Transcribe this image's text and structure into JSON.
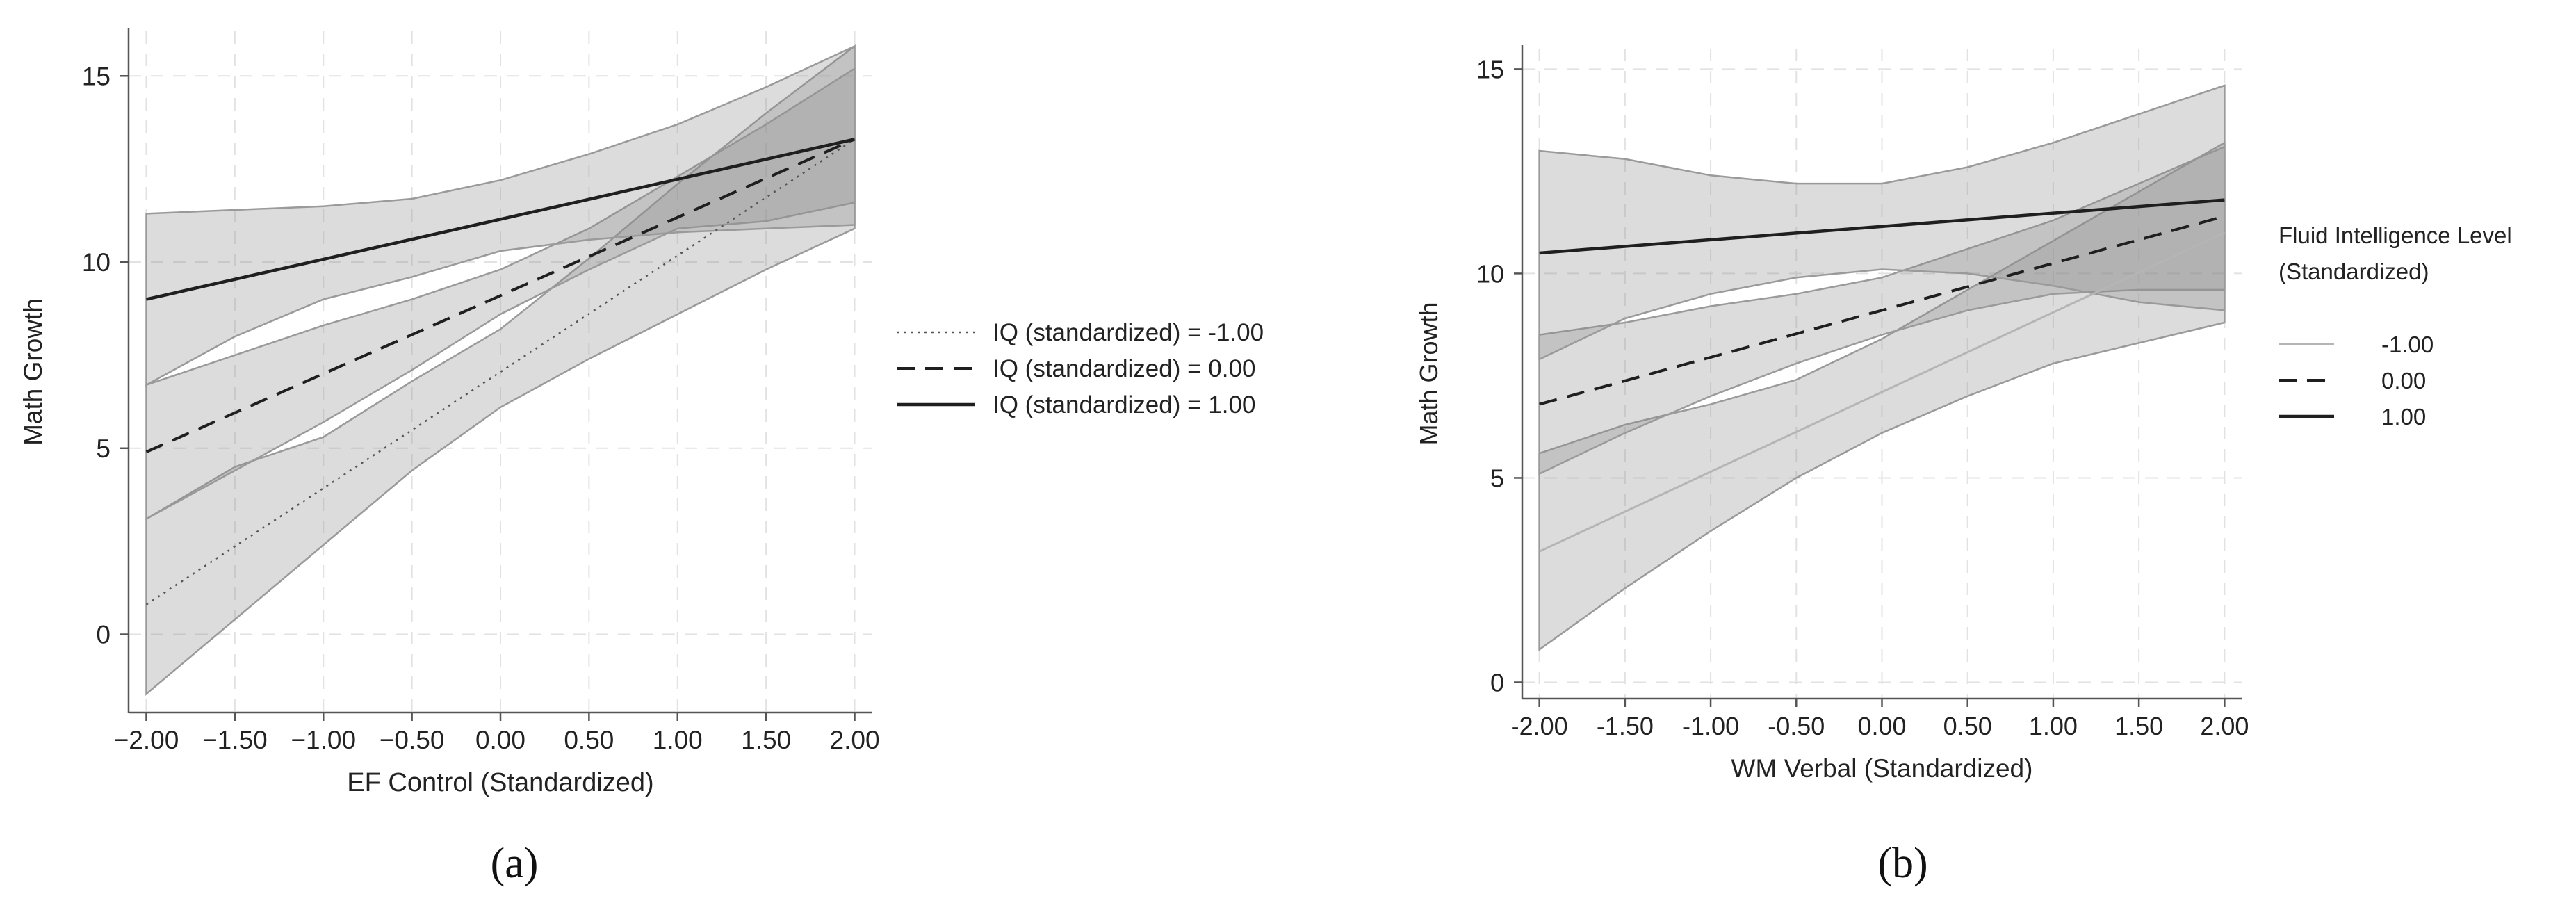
{
  "colors": {
    "band_fill": "#8c8c8c",
    "band_edge": "#9a9a9a",
    "line": "#1f1f1f",
    "grid": "#e2e2e2",
    "axis": "#555555",
    "text": "#222222"
  },
  "chart_data": [
    {
      "type": "line",
      "panel_label": "(a)",
      "xlabel": "EF Control (Standardized)",
      "ylabel": "Math Growth",
      "xlim": [
        -2.1,
        2.1
      ],
      "ylim": [
        -2.1,
        16.2
      ],
      "xticks": [
        -2,
        -1.5,
        -1,
        -0.5,
        0,
        0.5,
        1,
        1.5,
        2
      ],
      "xtick_labels": [
        "−2.00",
        "−1.50",
        "−1.00",
        "−0.50",
        "0.00",
        "0.50",
        "1.00",
        "1.50",
        "2.00"
      ],
      "yticks": [
        0,
        5,
        10,
        15
      ],
      "ytick_labels": [
        "0",
        "5",
        "10",
        "15"
      ],
      "grid": true,
      "legend_title": "",
      "legend_position": "right",
      "series": [
        {
          "name": "IQ (standardized) = -1.00",
          "style": "dotted",
          "x": [
            -2,
            2
          ],
          "y": [
            0.8,
            13.3
          ],
          "ci_x": [
            -2,
            -1.5,
            -1,
            -0.5,
            0,
            0.5,
            1,
            1.5,
            2
          ],
          "ci_lower": [
            -1.6,
            0.4,
            2.4,
            4.4,
            6.1,
            7.4,
            8.6,
            9.8,
            10.9
          ],
          "ci_upper": [
            3.1,
            4.5,
            5.3,
            6.8,
            8.2,
            10.1,
            12.1,
            14.0,
            15.8
          ]
        },
        {
          "name": "IQ (standardized) = 0.00",
          "style": "dashed",
          "x": [
            -2,
            2
          ],
          "y": [
            4.9,
            13.3
          ],
          "ci_x": [
            -2,
            -1.5,
            -1,
            -0.5,
            0,
            0.5,
            1,
            1.5,
            2
          ],
          "ci_lower": [
            3.1,
            4.4,
            5.7,
            7.1,
            8.6,
            9.8,
            10.9,
            11.1,
            11.6
          ],
          "ci_upper": [
            6.7,
            7.5,
            8.3,
            9.0,
            9.8,
            10.9,
            12.3,
            13.7,
            15.2
          ]
        },
        {
          "name": "IQ (standardized) = 1.00",
          "style": "solid",
          "x": [
            -2,
            2
          ],
          "y": [
            9.0,
            13.3
          ],
          "ci_x": [
            -2,
            -1.5,
            -1,
            -0.5,
            0,
            0.5,
            1,
            1.5,
            2
          ],
          "ci_lower": [
            6.7,
            8.0,
            9.0,
            9.6,
            10.3,
            10.6,
            10.8,
            10.9,
            11.0
          ],
          "ci_upper": [
            11.3,
            11.4,
            11.5,
            11.7,
            12.2,
            12.9,
            13.7,
            14.7,
            15.8
          ]
        }
      ]
    },
    {
      "type": "line",
      "panel_label": "(b)",
      "xlabel": "WM Verbal (Standardized)",
      "ylabel": "Math Growth",
      "xlim": [
        -2.1,
        2.1
      ],
      "ylim": [
        -0.4,
        15.5
      ],
      "xticks": [
        -2,
        -1.5,
        -1,
        -0.5,
        0,
        0.5,
        1,
        1.5,
        2
      ],
      "xtick_labels": [
        "-2.00",
        "-1.50",
        "-1.00",
        "-0.50",
        "0.00",
        "0.50",
        "1.00",
        "1.50",
        "2.00"
      ],
      "yticks": [
        0,
        5,
        10,
        15
      ],
      "ytick_labels": [
        "0",
        "5",
        "10",
        "15"
      ],
      "grid": true,
      "legend_title": "Fluid Intelligence Level (Standardized)",
      "legend_title_lines": [
        "Fluid Intelligence Level",
        "(Standardized)"
      ],
      "legend_position": "right",
      "series": [
        {
          "name": "-1.00",
          "style": "light",
          "x": [
            -2,
            2
          ],
          "y": [
            3.2,
            11.0
          ],
          "ci_x": [
            -2,
            -1.5,
            -1,
            -0.5,
            0,
            0.5,
            1,
            1.5,
            2
          ],
          "ci_lower": [
            0.8,
            2.3,
            3.7,
            5.0,
            6.1,
            7.0,
            7.8,
            8.3,
            8.8
          ],
          "ci_upper": [
            5.6,
            6.3,
            6.8,
            7.4,
            8.4,
            9.6,
            10.8,
            12.0,
            13.2
          ]
        },
        {
          "name": "0.00",
          "style": "dashed",
          "x": [
            -2,
            2
          ],
          "y": [
            6.8,
            11.4
          ],
          "ci_x": [
            -2,
            -1.5,
            -1,
            -0.5,
            0,
            0.5,
            1,
            1.5,
            2
          ],
          "ci_lower": [
            5.1,
            6.1,
            7.0,
            7.8,
            8.5,
            9.1,
            9.5,
            9.6,
            9.6
          ],
          "ci_upper": [
            8.5,
            8.8,
            9.2,
            9.5,
            9.9,
            10.6,
            11.3,
            12.2,
            13.1
          ]
        },
        {
          "name": "1.00",
          "style": "solid",
          "x": [
            -2,
            2
          ],
          "y": [
            10.5,
            11.8
          ],
          "ci_x": [
            -2,
            -1.5,
            -1,
            -0.5,
            0,
            0.5,
            1,
            1.5,
            2
          ],
          "ci_lower": [
            7.9,
            8.9,
            9.5,
            9.9,
            10.1,
            10.0,
            9.7,
            9.3,
            9.1
          ],
          "ci_upper": [
            13.0,
            12.8,
            12.4,
            12.2,
            12.2,
            12.6,
            13.2,
            13.9,
            14.6
          ]
        }
      ]
    }
  ]
}
